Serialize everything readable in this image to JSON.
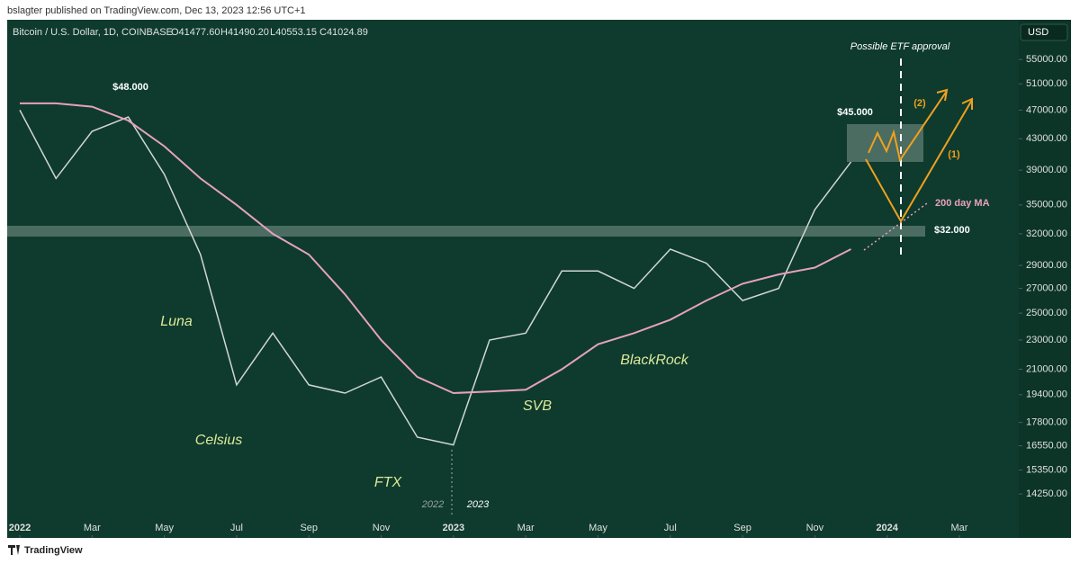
{
  "header": {
    "publisher": "bslagter published on TradingView.com, Dec 13, 2023 12:56 UTC+1",
    "symbol": "Bitcoin / U.S. Dollar, 1D, COINBASE",
    "open": "O41477.60",
    "high": "H41490.20",
    "low": "L40553.15",
    "close": "C41024.89",
    "currency": "USD"
  },
  "footer": "TradingView",
  "chart_data": {
    "type": "line",
    "log_y": true,
    "grid": false,
    "x": [
      "2022-01",
      "2022-02",
      "2022-03",
      "2022-04",
      "2022-05",
      "2022-06",
      "2022-07",
      "2022-08",
      "2022-09",
      "2022-10",
      "2022-11",
      "2022-12",
      "2023-01",
      "2023-02",
      "2023-03",
      "2023-04",
      "2023-05",
      "2023-06",
      "2023-07",
      "2023-08",
      "2023-09",
      "2023-10",
      "2023-11",
      "2023-12"
    ],
    "series": [
      {
        "color": "#d2d6d2",
        "values": [
          47000,
          38000,
          44000,
          46000,
          38500,
          30000,
          20000,
          23500,
          20000,
          19500,
          20500,
          17000,
          16600,
          23000,
          23500,
          28500,
          28500,
          27000,
          30500,
          29200,
          26000,
          27000,
          34500,
          40000
        ]
      },
      {
        "name": "200 day MA",
        "color": "#e7a1c0",
        "values": [
          48000,
          48000,
          47500,
          45500,
          42000,
          38000,
          35000,
          32000,
          30000,
          26500,
          23000,
          20500,
          19500,
          19600,
          19700,
          21000,
          22700,
          23500,
          24500,
          26000,
          27400,
          28200,
          28800,
          30500
        ]
      }
    ],
    "xlim": [
      "2022-01",
      "2024-03"
    ],
    "xticks": [
      {
        "value": "2022-01",
        "label": "2022"
      },
      {
        "value": "2022-03",
        "label": "Mar"
      },
      {
        "value": "2022-05",
        "label": "May"
      },
      {
        "value": "2022-07",
        "label": "Jul"
      },
      {
        "value": "2022-09",
        "label": "Sep"
      },
      {
        "value": "2022-11",
        "label": "Nov"
      },
      {
        "value": "2023-01",
        "label": "2023"
      },
      {
        "value": "2023-03",
        "label": "Mar"
      },
      {
        "value": "2023-05",
        "label": "May"
      },
      {
        "value": "2023-07",
        "label": "Jul"
      },
      {
        "value": "2023-09",
        "label": "Sep"
      },
      {
        "value": "2023-11",
        "label": "Nov"
      },
      {
        "value": "2024-01",
        "label": "2024"
      },
      {
        "value": "2024-03",
        "label": "Mar"
      }
    ],
    "ylim": [
      12430,
      62240
    ],
    "yticks": [
      {
        "value": 55000,
        "label": "55000.00"
      },
      {
        "value": 51000,
        "label": "51000.00"
      },
      {
        "value": 47000,
        "label": "47000.00"
      },
      {
        "value": 43000,
        "label": "43000.00"
      },
      {
        "value": 39000,
        "label": "39000.00"
      },
      {
        "value": 35000,
        "label": "35000.00"
      },
      {
        "value": 32000,
        "label": "32000.00"
      },
      {
        "value": 29000,
        "label": "29000.00"
      },
      {
        "value": 27000,
        "label": "27000.00"
      },
      {
        "value": 25000,
        "label": "25000.00"
      },
      {
        "value": 23000,
        "label": "23000.00"
      },
      {
        "value": 21000,
        "label": "21000.00"
      },
      {
        "value": 19400,
        "label": "19400.00"
      },
      {
        "value": 17800,
        "label": "17800.00"
      },
      {
        "value": 16550,
        "label": "16550.00"
      },
      {
        "value": 15350,
        "label": "15350.00"
      },
      {
        "value": 14250,
        "label": "14250.00"
      }
    ],
    "annotations": [
      "$48.000",
      "$45.000",
      "$32.000",
      "(1)",
      "(2)",
      "Possible ETF approval",
      "Luna",
      "Celsius",
      "FTX",
      "SVB",
      "BlackRock",
      "2022",
      "2023"
    ]
  }
}
